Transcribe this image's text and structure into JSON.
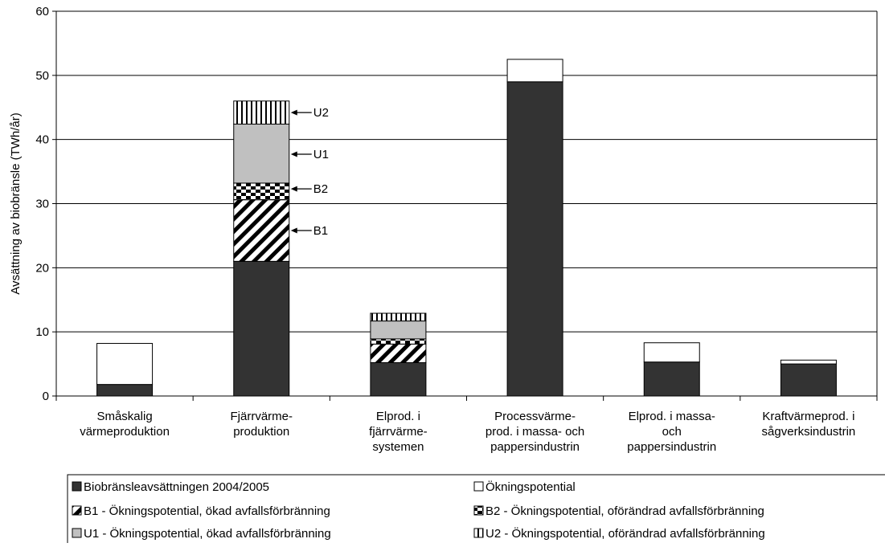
{
  "chart_data": {
    "type": "bar",
    "stacked": true,
    "ylabel": "Avsättning av biobränsle (TWh/år)",
    "xlabel": "",
    "title": "",
    "ylim": [
      0,
      60
    ],
    "yticks": [
      0,
      10,
      20,
      30,
      40,
      50,
      60
    ],
    "grid": true,
    "legend_position": "bottom",
    "categories": [
      [
        "Småskalig",
        "värmeproduktion"
      ],
      [
        "Fjärrvärme-",
        "produktion"
      ],
      [
        "Elprod. i",
        "fjärrvärme-",
        "systemen"
      ],
      [
        "Processvärme-",
        "prod. i massa- och",
        "pappersindustrin"
      ],
      [
        "Elprod. i massa-",
        "och",
        "pappersindustrin"
      ],
      [
        "Kraftvärmeprod. i",
        "sågverksindustrin"
      ]
    ],
    "series": [
      {
        "name": "Biobränsleavsättningen  2004/2005",
        "pattern": "solid",
        "color": "#333333",
        "values": [
          1.8,
          21.0,
          5.2,
          49.0,
          5.3,
          5.0
        ]
      },
      {
        "name": "Ökningspotential",
        "pattern": "empty",
        "color": "#ffffff",
        "values": [
          6.4,
          0,
          0,
          3.5,
          3.0,
          0.6
        ]
      },
      {
        "name": "B1 - Ökningspotential, ökad avfallsförbränning",
        "pattern": "diagonal",
        "values": [
          0,
          9.6,
          2.9,
          0,
          0,
          0
        ]
      },
      {
        "name": "B2 - Ökningspotential, oförändrad avfallsförbränning",
        "pattern": "checker",
        "values": [
          0,
          2.6,
          0.8,
          0,
          0,
          0
        ]
      },
      {
        "name": "U1 - Ökningspotential, ökad avfallsförbränning",
        "pattern": "gray",
        "color": "#c0c0c0",
        "values": [
          0,
          9.2,
          2.8,
          0,
          0,
          0
        ]
      },
      {
        "name": "U2 - Ökningspotential, oförändrad avfallsförbränning",
        "pattern": "vertical",
        "values": [
          0,
          3.6,
          1.2,
          0,
          0,
          0
        ]
      }
    ],
    "annotations": [
      {
        "text": "U2",
        "category_index": 1,
        "y": 44.2
      },
      {
        "text": "U1",
        "category_index": 1,
        "y": 37.7
      },
      {
        "text": "B2",
        "category_index": 1,
        "y": 32.3
      },
      {
        "text": "B1",
        "category_index": 1,
        "y": 25.8
      }
    ]
  }
}
